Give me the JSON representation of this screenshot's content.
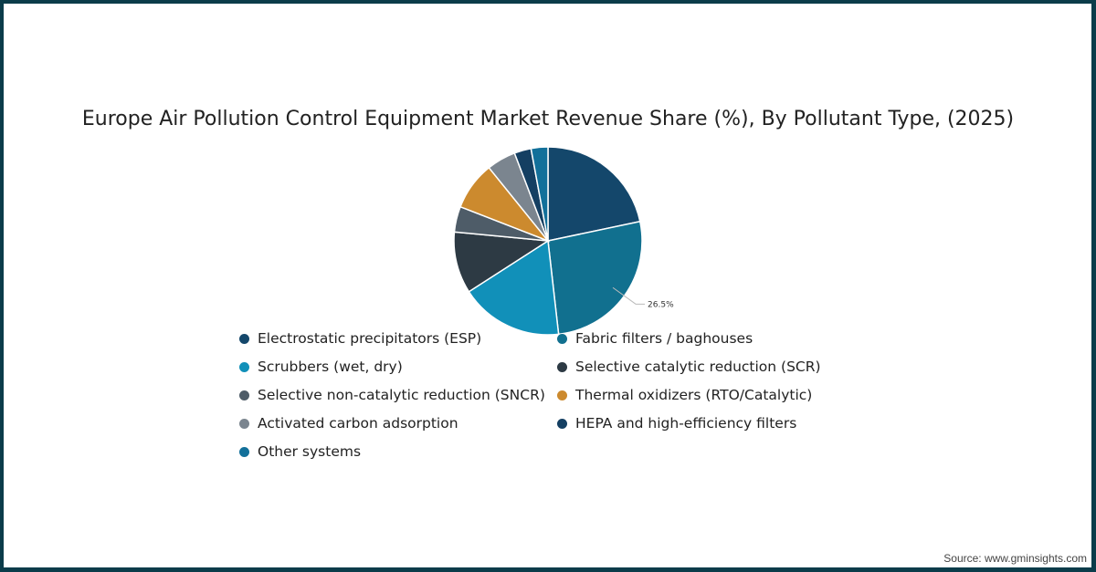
{
  "chart_data": {
    "type": "pie",
    "title": "Europe Air Pollution Control Equipment Market Revenue Share (%), By Pollutant Type, (2025)",
    "categories": [
      "Electrostatic precipitators (ESP)",
      "Fabric filters / baghouses",
      "Scrubbers (wet, dry)",
      "Selective catalytic reduction (SCR)",
      "Selective non-catalytic reduction (SNCR)",
      "Thermal oxidizers (RTO/Catalytic)",
      "Activated carbon adsorption",
      "HEPA and high-efficiency filters",
      "Other systems"
    ],
    "values": [
      21.7,
      26.5,
      17.7,
      10.6,
      4.4,
      8.3,
      5.0,
      2.9,
      2.9
    ],
    "colors": [
      "#14476b",
      "#11708f",
      "#1190b9",
      "#2d3a44",
      "#4e5c68",
      "#cc8a2e",
      "#7b858f",
      "#143f62",
      "#12709a"
    ],
    "data_labels": [
      {
        "index": 1,
        "text": "26.5%"
      }
    ],
    "legend_position": "bottom"
  },
  "source": "Source: www.gminsights.com"
}
